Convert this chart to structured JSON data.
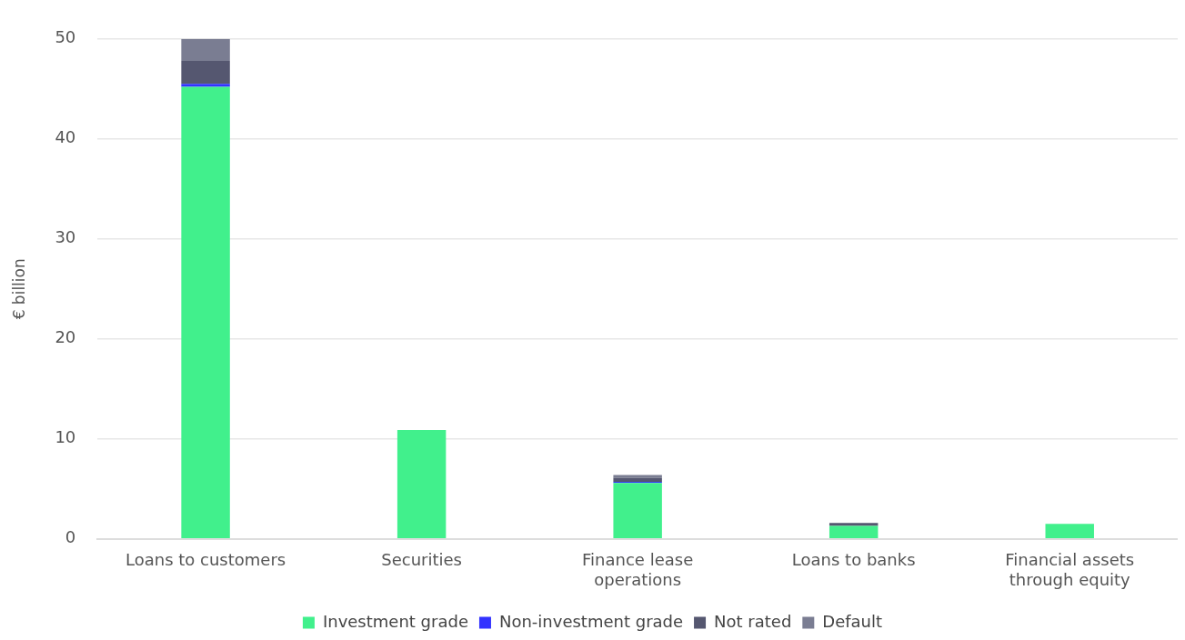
{
  "chart_data": {
    "type": "bar",
    "ylabel": "€ billion",
    "categories": [
      "Loans to customers",
      "Securities",
      "Finance lease operations",
      "Loans to banks",
      "Financial assets through equity"
    ],
    "series": [
      {
        "name": "Investment grade",
        "color": "#41f08c",
        "values": [
          45.2,
          10.9,
          5.6,
          1.3,
          1.5
        ]
      },
      {
        "name": "Non-investment grade",
        "color": "#3333ff",
        "values": [
          0.3,
          0,
          0.1,
          0,
          0
        ]
      },
      {
        "name": "Not rated",
        "color": "#555770",
        "values": [
          2.3,
          0,
          0.4,
          0.3,
          0
        ]
      },
      {
        "name": "Default",
        "color": "#7a7d92",
        "values": [
          2.2,
          0,
          0.3,
          0,
          0
        ]
      }
    ],
    "stacked": true,
    "ylim": [
      0,
      50
    ],
    "yticks": [
      0,
      10,
      20,
      30,
      40,
      50
    ],
    "grid": "y",
    "legend": "bottom"
  }
}
